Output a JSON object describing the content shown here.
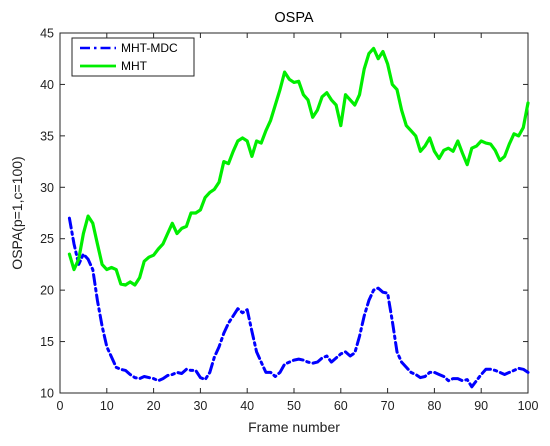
{
  "chart_data": {
    "type": "line",
    "title": "OSPA",
    "xlabel": "Frame number",
    "ylabel": "OSPA(p=1,c=100)",
    "xlim": [
      0,
      100
    ],
    "ylim": [
      10,
      45
    ],
    "xticks": [
      0,
      10,
      20,
      30,
      40,
      50,
      60,
      70,
      80,
      90,
      100
    ],
    "yticks": [
      10,
      15,
      20,
      25,
      30,
      35,
      40,
      45
    ],
    "grid": false,
    "legend_position": "top-left",
    "series": [
      {
        "name": "MHT-MDC",
        "color": "#0000ff",
        "style": "dash-dot",
        "x": [
          2,
          3,
          4,
          5,
          6,
          7,
          8,
          9,
          10,
          11,
          12,
          13,
          14,
          15,
          16,
          17,
          18,
          19,
          20,
          21,
          22,
          23,
          24,
          25,
          26,
          27,
          28,
          29,
          30,
          31,
          32,
          33,
          34,
          35,
          36,
          37,
          38,
          39,
          40,
          41,
          42,
          43,
          44,
          45,
          46,
          47,
          48,
          49,
          50,
          51,
          52,
          53,
          54,
          55,
          56,
          57,
          58,
          59,
          60,
          61,
          62,
          63,
          64,
          65,
          66,
          67,
          68,
          69,
          70,
          71,
          72,
          73,
          74,
          75,
          76,
          77,
          78,
          79,
          80,
          81,
          82,
          83,
          84,
          85,
          86,
          87,
          88,
          89,
          90,
          91,
          92,
          93,
          94,
          95,
          96,
          97,
          98,
          99,
          100
        ],
        "values": [
          27.0,
          24.5,
          22.5,
          23.5,
          23.0,
          22.0,
          19.0,
          16.5,
          14.5,
          13.5,
          12.5,
          12.3,
          12.2,
          11.8,
          11.5,
          11.4,
          11.6,
          11.5,
          11.4,
          11.2,
          11.4,
          11.7,
          11.8,
          12.0,
          11.9,
          12.3,
          12.2,
          12.2,
          11.5,
          11.3,
          12.0,
          13.5,
          14.5,
          15.8,
          16.8,
          17.5,
          18.2,
          17.8,
          18.1,
          16.0,
          14.0,
          13.0,
          12.0,
          12.0,
          11.6,
          12.0,
          12.8,
          13.0,
          13.2,
          13.3,
          13.2,
          13.0,
          12.9,
          13.0,
          13.4,
          13.6,
          13.0,
          13.4,
          13.8,
          14.0,
          13.6,
          13.9,
          15.5,
          17.5,
          19.0,
          20.0,
          20.2,
          19.8,
          19.7,
          17.0,
          14.0,
          13.0,
          12.5,
          12.0,
          11.8,
          11.5,
          11.6,
          12.0,
          12.0,
          11.8,
          11.6,
          11.2,
          11.4,
          11.4,
          11.2,
          11.3,
          10.6,
          11.2,
          11.8,
          12.3,
          12.3,
          12.2,
          12.0,
          11.8,
          12.0,
          12.2,
          12.4,
          12.3,
          12.0
        ]
      },
      {
        "name": "MHT",
        "color": "#00ee00",
        "style": "solid",
        "x": [
          2,
          3,
          4,
          5,
          6,
          7,
          8,
          9,
          10,
          11,
          12,
          13,
          14,
          15,
          16,
          17,
          18,
          19,
          20,
          21,
          22,
          23,
          24,
          25,
          26,
          27,
          28,
          29,
          30,
          31,
          32,
          33,
          34,
          35,
          36,
          37,
          38,
          39,
          40,
          41,
          42,
          43,
          44,
          45,
          46,
          47,
          48,
          49,
          50,
          51,
          52,
          53,
          54,
          55,
          56,
          57,
          58,
          59,
          60,
          61,
          62,
          63,
          64,
          65,
          66,
          67,
          68,
          69,
          70,
          71,
          72,
          73,
          74,
          75,
          76,
          77,
          78,
          79,
          80,
          81,
          82,
          83,
          84,
          85,
          86,
          87,
          88,
          89,
          90,
          91,
          92,
          93,
          94,
          95,
          96,
          97,
          98,
          99,
          100
        ],
        "values": [
          23.5,
          22.0,
          23.0,
          25.5,
          27.2,
          26.5,
          24.5,
          22.5,
          22.0,
          22.2,
          22.0,
          20.6,
          20.5,
          20.8,
          20.5,
          21.2,
          22.8,
          23.2,
          23.4,
          24.0,
          24.5,
          25.5,
          26.5,
          25.5,
          26.0,
          26.2,
          27.5,
          27.5,
          27.8,
          29.0,
          29.5,
          29.8,
          30.5,
          32.5,
          32.3,
          33.5,
          34.5,
          34.8,
          34.5,
          33.0,
          34.5,
          34.3,
          35.5,
          36.5,
          38.0,
          39.5,
          41.2,
          40.5,
          40.2,
          40.3,
          39.0,
          38.5,
          36.8,
          37.5,
          38.8,
          39.2,
          38.5,
          38.0,
          36.0,
          39.0,
          38.5,
          38.0,
          39.0,
          41.5,
          43.0,
          43.5,
          42.5,
          43.2,
          42.0,
          40.0,
          39.5,
          37.5,
          36.0,
          35.5,
          35.0,
          33.5,
          34.0,
          34.8,
          33.5,
          32.8,
          33.6,
          33.8,
          33.5,
          34.5,
          33.3,
          32.2,
          33.8,
          34.0,
          34.5,
          34.3,
          34.2,
          33.6,
          32.6,
          33.0,
          34.2,
          35.2,
          35.0,
          35.8,
          38.2
        ]
      }
    ]
  }
}
